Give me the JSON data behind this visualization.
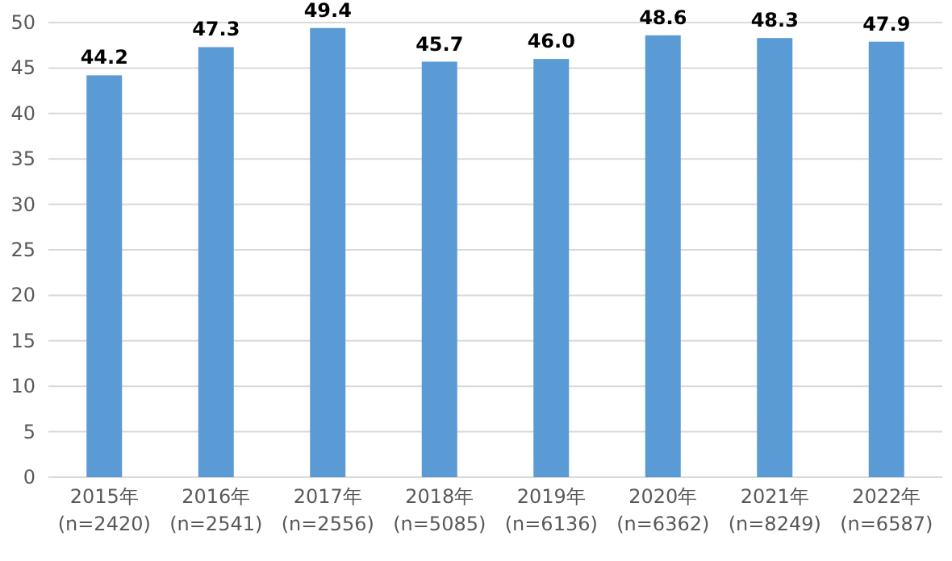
{
  "chart_data": {
    "type": "bar",
    "categories": [
      "2015年\n(n=2420)",
      "2016年\n(n=2541)",
      "2017年\n(n=2556)",
      "2018年\n(n=5085)",
      "2019年\n(n=6136)",
      "2020年\n(n=6362)",
      "2021年\n(n=8249)",
      "2022年\n(n=6587)"
    ],
    "values": [
      44.2,
      47.3,
      49.4,
      45.7,
      46.0,
      48.6,
      48.3,
      47.9
    ],
    "value_labels": [
      "44.2",
      "47.3",
      "49.4",
      "45.7",
      "46.0",
      "48.6",
      "48.3",
      "47.9"
    ],
    "color": "#5b9bd5",
    "ylim": [
      0,
      50
    ],
    "yticks": [
      0,
      5,
      10,
      15,
      20,
      25,
      30,
      35,
      40,
      45,
      50
    ],
    "grid": "y"
  }
}
